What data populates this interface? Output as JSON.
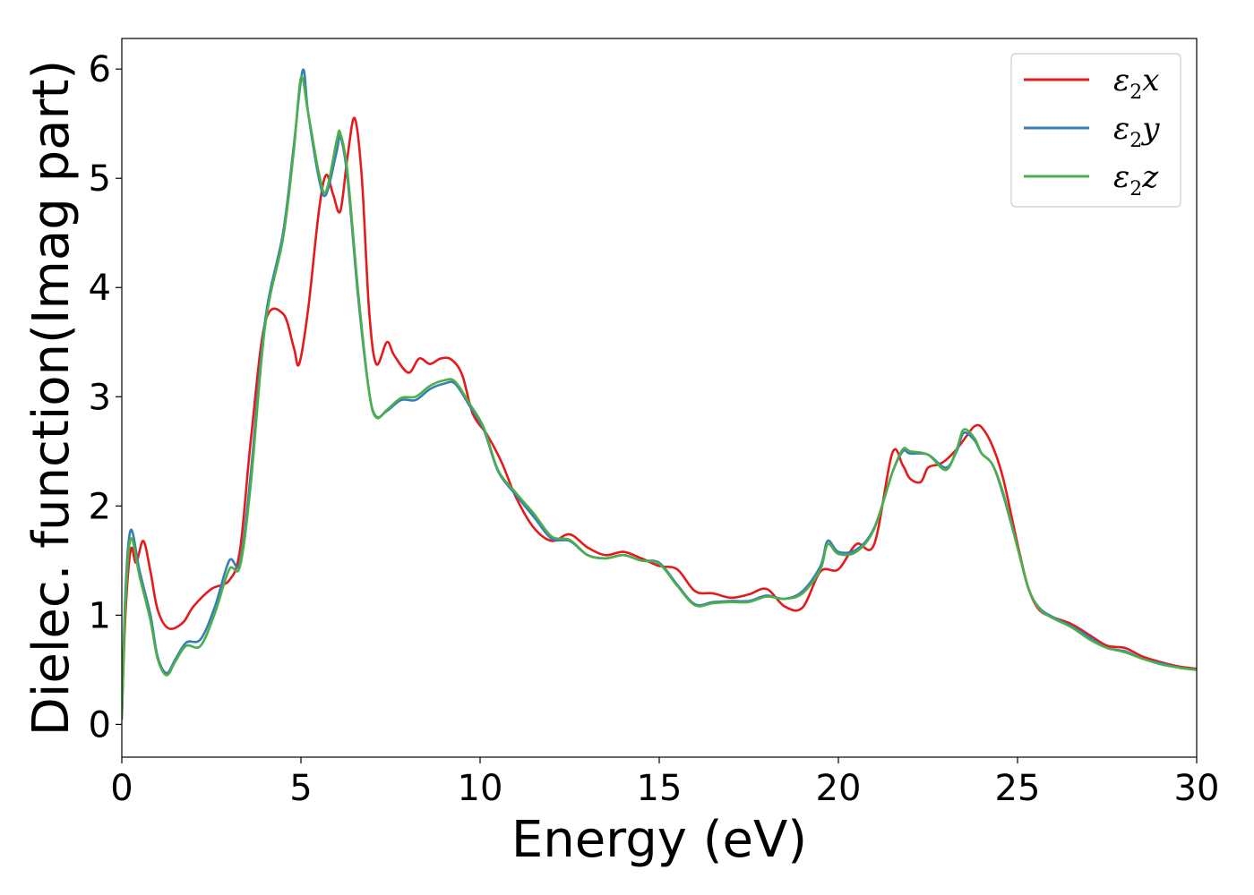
{
  "chart_data": {
    "type": "line",
    "title": "",
    "xlabel": "Energy (eV)",
    "ylabel": "Dielec. function(Imag part)",
    "xlim": [
      0,
      30
    ],
    "ylim": [
      -0.3,
      6.28
    ],
    "xticks": [
      0,
      5,
      10,
      15,
      20,
      25,
      30
    ],
    "yticks": [
      0,
      1,
      2,
      3,
      4,
      5,
      6
    ],
    "xtick_labels": [
      "0",
      "5",
      "10",
      "15",
      "20",
      "25",
      "30"
    ],
    "ytick_labels": [
      "0",
      "1",
      "2",
      "3",
      "4",
      "5",
      "6"
    ],
    "grid": false,
    "legend_position": "top-right",
    "series": [
      {
        "name": "ε2x",
        "symbol": "ε",
        "subscript": "2",
        "suffix": "x",
        "color": "#e41a1c",
        "x": [
          0,
          0.1,
          0.25,
          0.4,
          0.6,
          0.8,
          1.0,
          1.3,
          1.7,
          2.0,
          2.5,
          3.0,
          3.3,
          3.6,
          4.0,
          4.5,
          4.8,
          4.95,
          5.2,
          5.5,
          5.7,
          5.9,
          6.1,
          6.3,
          6.5,
          6.7,
          6.9,
          7.1,
          7.4,
          7.6,
          8.0,
          8.3,
          8.6,
          8.9,
          9.2,
          9.5,
          9.8,
          10.2,
          10.6,
          11.0,
          11.5,
          12.0,
          12.5,
          13.0,
          13.5,
          14.0,
          14.5,
          15.0,
          15.5,
          16.0,
          16.5,
          17.0,
          17.5,
          18.0,
          18.5,
          19.0,
          19.5,
          20.0,
          20.5,
          21.0,
          21.5,
          21.8,
          22.0,
          22.3,
          22.5,
          22.8,
          23.0,
          23.3,
          23.6,
          23.8,
          24.0,
          24.3,
          24.6,
          25.0,
          25.3,
          25.6,
          26.0,
          26.5,
          27.0,
          27.5,
          28.0,
          28.5,
          29.0,
          29.5,
          30.0
        ],
        "y": [
          0.05,
          1.0,
          1.6,
          1.48,
          1.68,
          1.4,
          1.05,
          0.88,
          0.93,
          1.08,
          1.24,
          1.32,
          1.6,
          2.6,
          3.68,
          3.76,
          3.45,
          3.3,
          3.8,
          4.7,
          5.03,
          4.85,
          4.7,
          5.2,
          5.55,
          5.0,
          3.8,
          3.3,
          3.5,
          3.38,
          3.22,
          3.35,
          3.3,
          3.35,
          3.34,
          3.2,
          2.84,
          2.65,
          2.4,
          2.08,
          1.8,
          1.68,
          1.74,
          1.62,
          1.55,
          1.58,
          1.52,
          1.45,
          1.42,
          1.22,
          1.2,
          1.16,
          1.19,
          1.24,
          1.08,
          1.07,
          1.4,
          1.42,
          1.65,
          1.65,
          2.48,
          2.37,
          2.25,
          2.22,
          2.35,
          2.38,
          2.42,
          2.52,
          2.65,
          2.73,
          2.72,
          2.55,
          2.25,
          1.65,
          1.25,
          1.05,
          0.98,
          0.92,
          0.82,
          0.72,
          0.7,
          0.62,
          0.57,
          0.53,
          0.51
        ]
      },
      {
        "name": "ε2y",
        "symbol": "ε",
        "subscript": "2",
        "suffix": "y",
        "color": "#377eb8",
        "x": [
          0,
          0.1,
          0.25,
          0.5,
          0.8,
          1.0,
          1.25,
          1.5,
          1.8,
          2.2,
          2.6,
          3.0,
          3.3,
          3.6,
          4.0,
          4.5,
          4.8,
          5.05,
          5.2,
          5.5,
          5.7,
          6.0,
          6.1,
          6.3,
          6.6,
          6.9,
          7.1,
          7.4,
          7.8,
          8.2,
          8.6,
          9.0,
          9.3,
          9.7,
          10.1,
          10.5,
          11.0,
          11.5,
          12.0,
          12.5,
          13.0,
          13.5,
          14.0,
          14.5,
          15.0,
          15.5,
          16.0,
          16.5,
          17.0,
          17.5,
          18.0,
          18.5,
          19.0,
          19.5,
          19.7,
          20.0,
          20.5,
          21.0,
          21.5,
          21.8,
          22.0,
          22.5,
          23.0,
          23.3,
          23.5,
          23.8,
          24.0,
          24.3,
          24.6,
          25.0,
          25.3,
          25.6,
          26.0,
          26.5,
          27.0,
          27.5,
          28.0,
          28.5,
          29.0,
          29.5,
          30.0
        ],
        "y": [
          0.05,
          1.2,
          1.78,
          1.4,
          1.0,
          0.62,
          0.47,
          0.6,
          0.75,
          0.78,
          1.08,
          1.5,
          1.48,
          2.3,
          3.7,
          4.5,
          5.3,
          5.99,
          5.6,
          5.0,
          4.85,
          5.25,
          5.38,
          5.0,
          3.9,
          3.05,
          2.82,
          2.87,
          2.97,
          2.97,
          3.07,
          3.12,
          3.12,
          2.92,
          2.7,
          2.32,
          2.1,
          1.9,
          1.7,
          1.68,
          1.55,
          1.52,
          1.55,
          1.5,
          1.48,
          1.28,
          1.1,
          1.12,
          1.13,
          1.13,
          1.18,
          1.15,
          1.22,
          1.45,
          1.68,
          1.58,
          1.6,
          1.8,
          2.3,
          2.5,
          2.48,
          2.47,
          2.35,
          2.5,
          2.67,
          2.6,
          2.48,
          2.38,
          2.1,
          1.62,
          1.25,
          1.07,
          0.98,
          0.9,
          0.8,
          0.7,
          0.67,
          0.6,
          0.56,
          0.52,
          0.5
        ]
      },
      {
        "name": "ε2z",
        "symbol": "ε",
        "subscript": "2",
        "suffix": "z",
        "color": "#4daf4a",
        "x": [
          0,
          0.1,
          0.25,
          0.5,
          0.8,
          1.0,
          1.25,
          1.5,
          1.8,
          2.2,
          2.6,
          3.0,
          3.3,
          3.6,
          4.0,
          4.5,
          4.8,
          5.0,
          5.2,
          5.5,
          5.7,
          6.0,
          6.1,
          6.3,
          6.6,
          6.9,
          7.1,
          7.4,
          7.8,
          8.2,
          8.6,
          9.0,
          9.3,
          9.7,
          10.1,
          10.5,
          11.0,
          11.5,
          12.0,
          12.5,
          13.0,
          13.5,
          14.0,
          14.5,
          15.0,
          15.5,
          16.0,
          16.5,
          17.0,
          17.5,
          18.0,
          18.5,
          19.0,
          19.5,
          19.7,
          20.0,
          20.5,
          21.0,
          21.5,
          21.8,
          22.0,
          22.5,
          23.0,
          23.3,
          23.5,
          23.8,
          24.0,
          24.3,
          24.6,
          25.0,
          25.3,
          25.6,
          26.0,
          26.5,
          27.0,
          27.5,
          28.0,
          28.5,
          29.0,
          29.5,
          30.0
        ],
        "y": [
          0.05,
          1.1,
          1.7,
          1.35,
          0.95,
          0.6,
          0.45,
          0.58,
          0.72,
          0.72,
          1.02,
          1.42,
          1.45,
          2.2,
          3.65,
          4.45,
          5.25,
          5.92,
          5.6,
          5.05,
          4.88,
          5.35,
          5.41,
          5.05,
          3.95,
          3.05,
          2.81,
          2.88,
          2.99,
          3.0,
          3.1,
          3.15,
          3.14,
          2.94,
          2.72,
          2.33,
          2.12,
          1.93,
          1.72,
          1.69,
          1.55,
          1.52,
          1.55,
          1.5,
          1.47,
          1.27,
          1.09,
          1.11,
          1.12,
          1.12,
          1.17,
          1.15,
          1.2,
          1.42,
          1.65,
          1.56,
          1.58,
          1.79,
          2.3,
          2.52,
          2.5,
          2.47,
          2.33,
          2.52,
          2.7,
          2.62,
          2.48,
          2.38,
          2.12,
          1.62,
          1.25,
          1.06,
          0.97,
          0.89,
          0.78,
          0.7,
          0.66,
          0.6,
          0.55,
          0.52,
          0.5
        ]
      }
    ]
  }
}
